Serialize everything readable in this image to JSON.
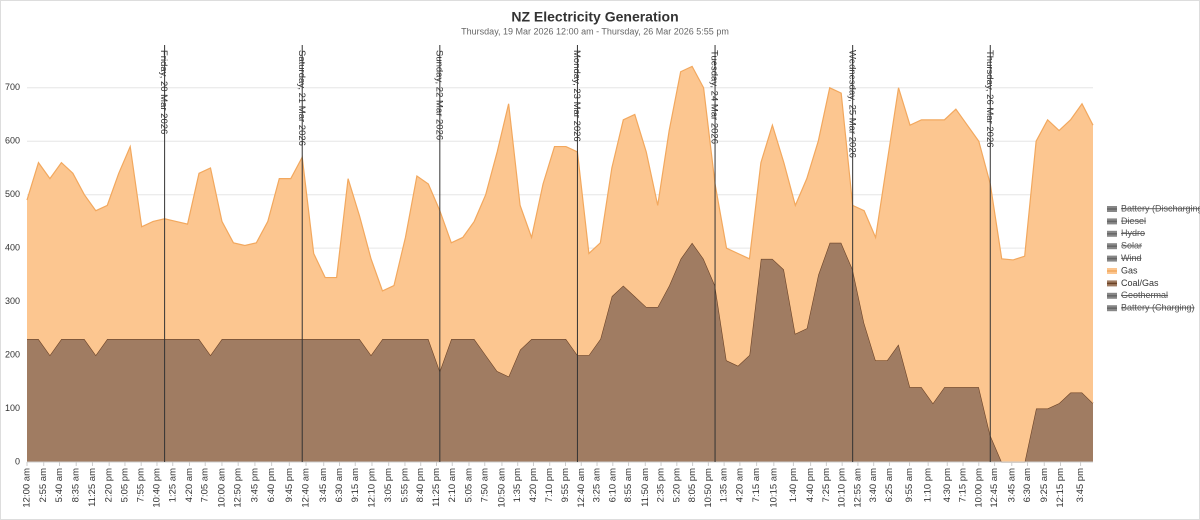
{
  "chart_data": {
    "type": "stacked_area",
    "title": "NZ Electricity Generation",
    "subtitle": "Thursday, 19 Mar 2026 12:00 am - Thursday, 26 Mar 2026 5:55 pm",
    "x": [
      0,
      2,
      4,
      6,
      8,
      10,
      12,
      14,
      16,
      18,
      20,
      22,
      24,
      26,
      28,
      30,
      32,
      34,
      36,
      38,
      40,
      42,
      44,
      46,
      48,
      50,
      52,
      54,
      56,
      58,
      60,
      62,
      64,
      66,
      68,
      70,
      72,
      74,
      76,
      78,
      80,
      82,
      84,
      86,
      88,
      90,
      92,
      94,
      96,
      98,
      100,
      102,
      104,
      106,
      108,
      110,
      112,
      114,
      116,
      118,
      120,
      122,
      124,
      126,
      128,
      130,
      132,
      134,
      136,
      138,
      140,
      142,
      144,
      146,
      148,
      150,
      152,
      154,
      156,
      158,
      160,
      162,
      164,
      166,
      168,
      170,
      172,
      174,
      176,
      178,
      180,
      182,
      184,
      185.917
    ],
    "series": [
      {
        "name": "Battery (Discharging)",
        "visible": false,
        "color": "#999999"
      },
      {
        "name": "Diesel",
        "visible": false,
        "color": "#999999"
      },
      {
        "name": "Hydro",
        "visible": false,
        "color": "#999999"
      },
      {
        "name": "Solar",
        "visible": false,
        "color": "#999999"
      },
      {
        "name": "Wind",
        "visible": false,
        "color": "#999999"
      },
      {
        "name": "Coal/Gas",
        "visible": true,
        "color": "#a07c62",
        "line_color": "#6b4226",
        "stack_order": 0,
        "values": [
          230,
          230,
          200,
          230,
          230,
          230,
          200,
          230,
          230,
          230,
          230,
          230,
          230,
          230,
          230,
          230,
          200,
          230,
          230,
          230,
          230,
          230,
          230,
          230,
          230,
          230,
          230,
          230,
          230,
          230,
          200,
          230,
          230,
          230,
          230,
          230,
          170,
          230,
          230,
          230,
          200,
          170,
          160,
          210,
          230,
          230,
          230,
          230,
          200,
          200,
          230,
          310,
          330,
          310,
          290,
          290,
          330,
          380,
          410,
          380,
          330,
          190,
          180,
          200,
          380,
          380,
          360,
          240,
          250,
          350,
          410,
          410,
          360,
          260,
          190,
          190,
          220,
          140,
          140,
          110,
          140,
          140,
          140,
          140,
          50,
          0,
          0,
          0,
          100,
          100,
          110,
          130,
          130,
          110
        ]
      },
      {
        "name": "Gas",
        "visible": true,
        "color": "#fcc690",
        "line_color": "#f2a85e",
        "stack_order": 1,
        "values": [
          260,
          330,
          330,
          330,
          310,
          270,
          270,
          250,
          310,
          360,
          210,
          220,
          225,
          220,
          215,
          310,
          350,
          220,
          180,
          175,
          180,
          220,
          300,
          300,
          340,
          160,
          115,
          115,
          300,
          230,
          180,
          90,
          100,
          190,
          305,
          290,
          300,
          180,
          190,
          220,
          300,
          410,
          510,
          270,
          190,
          290,
          360,
          360,
          380,
          190,
          180,
          240,
          310,
          340,
          290,
          190,
          290,
          350,
          330,
          320,
          190,
          210,
          210,
          180,
          180,
          250,
          200,
          240,
          280,
          250,
          290,
          280,
          120,
          210,
          230,
          370,
          480,
          490,
          500,
          530,
          500,
          520,
          490,
          460,
          470,
          380,
          378,
          385,
          500,
          540,
          510,
          510,
          540,
          520
        ]
      },
      {
        "name": "Geothermal",
        "visible": false,
        "color": "#999999"
      },
      {
        "name": "Battery (Charging)",
        "visible": false,
        "color": "#999999"
      }
    ],
    "legend_order": [
      0,
      1,
      2,
      3,
      4,
      6,
      5,
      7,
      8
    ],
    "annotations": [
      {
        "label": "Friday, 20 Mar 2026",
        "x": 24
      },
      {
        "label": "Saturday, 21 Mar 2026",
        "x": 48
      },
      {
        "label": "Sunday, 22 Mar 2026",
        "x": 72
      },
      {
        "label": "Monday, 23 Mar 2026",
        "x": 96
      },
      {
        "label": "Tuesday, 24 Mar 2026",
        "x": 120
      },
      {
        "label": "Wednesday, 25 Mar 2026",
        "x": 144
      },
      {
        "label": "Thursday, 26 Mar 2026",
        "x": 168
      }
    ],
    "xlim": [
      0,
      185.917
    ],
    "xticks": [
      {
        "value": 0,
        "label": "12:00 am"
      },
      {
        "value": 2.917,
        "label": "2:55 am"
      },
      {
        "value": 5.667,
        "label": "5:40 am"
      },
      {
        "value": 8.583,
        "label": "8:35 am"
      },
      {
        "value": 11.417,
        "label": "11:25 am"
      },
      {
        "value": 14.333,
        "label": "2:20 pm"
      },
      {
        "value": 17.083,
        "label": "5:05 pm"
      },
      {
        "value": 19.917,
        "label": "7:55 pm"
      },
      {
        "value": 22.667,
        "label": "10:40 pm"
      },
      {
        "value": 25.417,
        "label": "1:25 am"
      },
      {
        "value": 28.333,
        "label": "4:20 am"
      },
      {
        "value": 31.083,
        "label": "7:05 am"
      },
      {
        "value": 34,
        "label": "10:00 am"
      },
      {
        "value": 36.833,
        "label": "12:50 pm"
      },
      {
        "value": 39.75,
        "label": "3:45 pm"
      },
      {
        "value": 42.667,
        "label": "6:40 pm"
      },
      {
        "value": 45.75,
        "label": "9:45 pm"
      },
      {
        "value": 48.667,
        "label": "12:40 am"
      },
      {
        "value": 51.75,
        "label": "3:45 am"
      },
      {
        "value": 54.5,
        "label": "6:30 am"
      },
      {
        "value": 57.25,
        "label": "9:15 am"
      },
      {
        "value": 60.167,
        "label": "12:10 pm"
      },
      {
        "value": 63.083,
        "label": "3:05 pm"
      },
      {
        "value": 65.917,
        "label": "5:55 pm"
      },
      {
        "value": 68.667,
        "label": "8:40 pm"
      },
      {
        "value": 71.417,
        "label": "11:25 pm"
      },
      {
        "value": 74.167,
        "label": "2:10 am"
      },
      {
        "value": 77.083,
        "label": "5:05 am"
      },
      {
        "value": 79.833,
        "label": "7:50 am"
      },
      {
        "value": 82.833,
        "label": "10:50 am"
      },
      {
        "value": 85.583,
        "label": "1:35 pm"
      },
      {
        "value": 88.333,
        "label": "4:20 pm"
      },
      {
        "value": 91.167,
        "label": "7:10 pm"
      },
      {
        "value": 93.917,
        "label": "9:55 pm"
      },
      {
        "value": 96.667,
        "label": "12:40 am"
      },
      {
        "value": 99.417,
        "label": "3:25 am"
      },
      {
        "value": 102.167,
        "label": "6:10 am"
      },
      {
        "value": 104.917,
        "label": "8:55 am"
      },
      {
        "value": 107.833,
        "label": "11:50 am"
      },
      {
        "value": 110.583,
        "label": "2:35 pm"
      },
      {
        "value": 113.333,
        "label": "5:20 pm"
      },
      {
        "value": 116.083,
        "label": "8:05 pm"
      },
      {
        "value": 118.833,
        "label": "10:50 pm"
      },
      {
        "value": 121.583,
        "label": "1:35 am"
      },
      {
        "value": 124.333,
        "label": "4:20 am"
      },
      {
        "value": 127.25,
        "label": "7:15 am"
      },
      {
        "value": 130.25,
        "label": "10:15 am"
      },
      {
        "value": 133.667,
        "label": "1:40 pm"
      },
      {
        "value": 136.667,
        "label": "4:40 pm"
      },
      {
        "value": 139.417,
        "label": "7:25 pm"
      },
      {
        "value": 142.167,
        "label": "10:10 pm"
      },
      {
        "value": 144.917,
        "label": "12:55 am"
      },
      {
        "value": 147.667,
        "label": "3:40 am"
      },
      {
        "value": 150.417,
        "label": "6:25 am"
      },
      {
        "value": 153.917,
        "label": "9:55 am"
      },
      {
        "value": 157.167,
        "label": "1:10 pm"
      },
      {
        "value": 160.5,
        "label": "4:30 pm"
      },
      {
        "value": 163.25,
        "label": "7:15 pm"
      },
      {
        "value": 166,
        "label": "10:00 pm"
      },
      {
        "value": 168.75,
        "label": "12:45 am"
      },
      {
        "value": 171.75,
        "label": "3:45 am"
      },
      {
        "value": 174.5,
        "label": "6:30 am"
      },
      {
        "value": 177.417,
        "label": "9:25 am"
      },
      {
        "value": 180.25,
        "label": "12:15 pm"
      },
      {
        "value": 183.75,
        "label": "3:45 pm"
      }
    ],
    "ylim": [
      0,
      780
    ],
    "yticks": [
      0,
      100,
      200,
      300,
      400,
      500,
      600,
      700
    ],
    "grid": true,
    "legend_position": "right"
  }
}
